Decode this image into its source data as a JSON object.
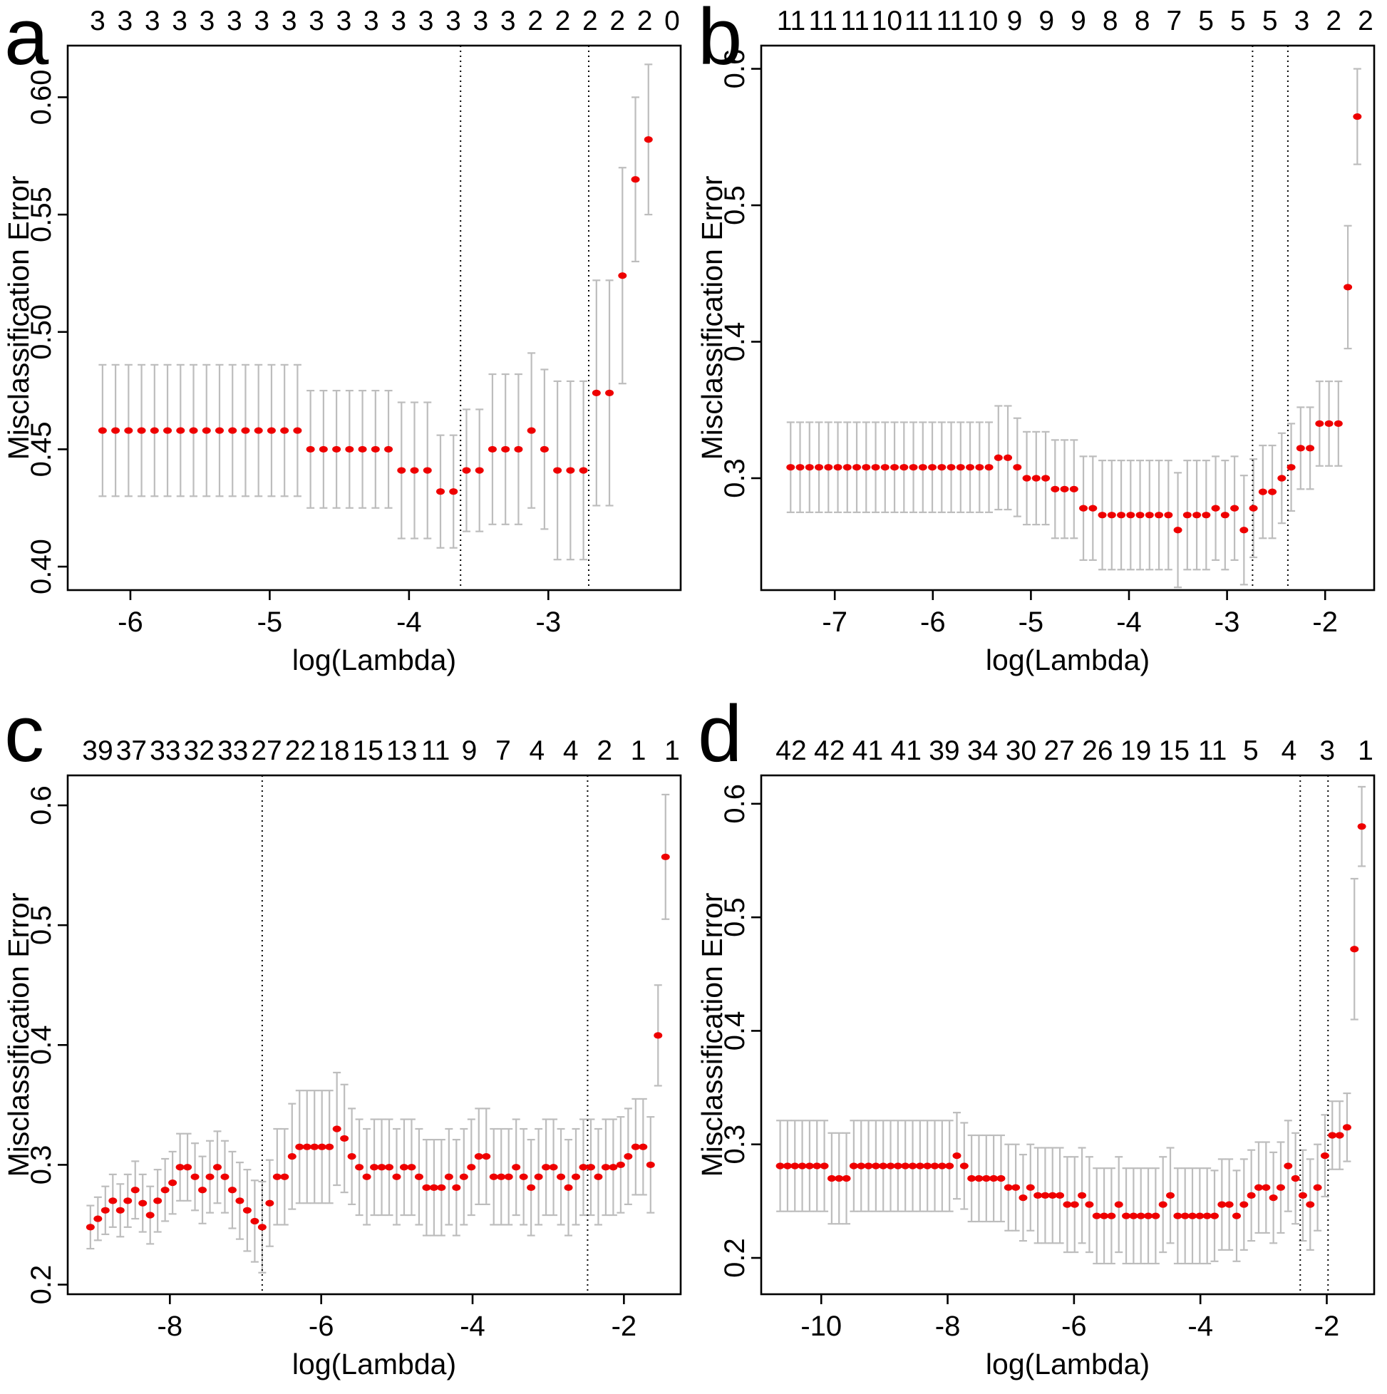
{
  "figure_labels": {
    "xlabel": "log(Lambda)",
    "ylabel": "Misclassification Error"
  },
  "colors": {
    "point": "#ee0000",
    "error_bar": "#bdbdbd",
    "axis": "#000000",
    "vline": "#000000",
    "background": "#ffffff",
    "text": "#000000"
  },
  "chart_data": [
    {
      "panel_letter": "a",
      "type": "scatter",
      "title": "",
      "xlabel": "log(Lambda)",
      "ylabel": "Misclassification Error",
      "legend": "none",
      "grid": false,
      "top_axis_counts": [
        "3",
        "3",
        "3",
        "3",
        "3",
        "3",
        "3",
        "3",
        "3",
        "3",
        "3",
        "3",
        "3",
        "3",
        "3",
        "3",
        "2",
        "2",
        "2",
        "2",
        "2",
        "0"
      ],
      "x_ticks": [
        -6,
        -5,
        -4,
        -3
      ],
      "y_tick_labels": [
        "0.40",
        "0.45",
        "0.50",
        "0.55",
        "0.60"
      ],
      "y_tick_values": [
        0.4,
        0.45,
        0.5,
        0.55,
        0.6
      ],
      "xlim": [
        -6.45,
        -2.05
      ],
      "ylim": [
        0.39,
        0.622
      ],
      "vlines": [
        -3.63,
        -2.71
      ],
      "x_start": -6.2,
      "x_step": 0.0933,
      "y": [
        0.458,
        0.458,
        0.458,
        0.458,
        0.458,
        0.458,
        0.458,
        0.458,
        0.458,
        0.458,
        0.458,
        0.458,
        0.458,
        0.458,
        0.458,
        0.458,
        0.45,
        0.45,
        0.45,
        0.45,
        0.45,
        0.45,
        0.45,
        0.441,
        0.441,
        0.441,
        0.432,
        0.432,
        0.441,
        0.441,
        0.45,
        0.45,
        0.45,
        0.458,
        0.45,
        0.441,
        0.441,
        0.441,
        0.474,
        0.474,
        0.524,
        0.565,
        0.582
      ],
      "se": [
        0.028,
        0.028,
        0.028,
        0.028,
        0.028,
        0.028,
        0.028,
        0.028,
        0.028,
        0.028,
        0.028,
        0.028,
        0.028,
        0.028,
        0.028,
        0.028,
        0.025,
        0.025,
        0.025,
        0.025,
        0.025,
        0.025,
        0.025,
        0.029,
        0.029,
        0.029,
        0.024,
        0.024,
        0.026,
        0.026,
        0.032,
        0.032,
        0.032,
        0.033,
        0.034,
        0.038,
        0.038,
        0.038,
        0.048,
        0.048,
        0.046,
        0.035,
        0.032
      ]
    },
    {
      "panel_letter": "b",
      "type": "scatter",
      "title": "",
      "xlabel": "log(Lambda)",
      "ylabel": "Misclassification Error",
      "legend": "none",
      "grid": false,
      "top_axis_counts": [
        "11",
        "11",
        "11",
        "10",
        "11",
        "11",
        "10",
        "9",
        "9",
        "9",
        "8",
        "8",
        "7",
        "5",
        "5",
        "5",
        "3",
        "2",
        "2"
      ],
      "x_ticks": [
        -7,
        -6,
        -5,
        -4,
        -3,
        -2
      ],
      "y_tick_labels": [
        "0.3",
        "0.4",
        "0.5",
        "0.6"
      ],
      "y_tick_values": [
        0.3,
        0.4,
        0.5,
        0.6
      ],
      "xlim": [
        -7.75,
        -1.5
      ],
      "ylim": [
        0.218,
        0.617
      ],
      "vlines": [
        -2.74,
        -2.38
      ],
      "x_start": -7.45,
      "x_step": 0.0963,
      "y": [
        0.308,
        0.308,
        0.308,
        0.308,
        0.308,
        0.308,
        0.308,
        0.308,
        0.308,
        0.308,
        0.308,
        0.308,
        0.308,
        0.308,
        0.308,
        0.308,
        0.308,
        0.308,
        0.308,
        0.308,
        0.308,
        0.308,
        0.315,
        0.315,
        0.308,
        0.3,
        0.3,
        0.3,
        0.292,
        0.292,
        0.292,
        0.278,
        0.278,
        0.273,
        0.273,
        0.273,
        0.273,
        0.273,
        0.273,
        0.273,
        0.273,
        0.262,
        0.273,
        0.273,
        0.273,
        0.278,
        0.273,
        0.278,
        0.262,
        0.278,
        0.29,
        0.29,
        0.3,
        0.308,
        0.322,
        0.322,
        0.34,
        0.34,
        0.34,
        0.44,
        0.565
      ],
      "se": [
        0.033,
        0.033,
        0.033,
        0.033,
        0.033,
        0.033,
        0.033,
        0.033,
        0.033,
        0.033,
        0.033,
        0.033,
        0.033,
        0.033,
        0.033,
        0.033,
        0.033,
        0.033,
        0.033,
        0.033,
        0.033,
        0.033,
        0.038,
        0.038,
        0.036,
        0.034,
        0.034,
        0.034,
        0.036,
        0.036,
        0.036,
        0.038,
        0.038,
        0.04,
        0.04,
        0.04,
        0.04,
        0.04,
        0.04,
        0.04,
        0.04,
        0.042,
        0.04,
        0.04,
        0.04,
        0.038,
        0.04,
        0.038,
        0.04,
        0.036,
        0.034,
        0.034,
        0.033,
        0.032,
        0.03,
        0.03,
        0.031,
        0.031,
        0.031,
        0.045,
        0.035
      ]
    },
    {
      "panel_letter": "c",
      "type": "scatter",
      "title": "",
      "xlabel": "log(Lambda)",
      "ylabel": "Misclassification Error",
      "legend": "none",
      "grid": false,
      "top_axis_counts": [
        "39",
        "37",
        "33",
        "32",
        "33",
        "27",
        "22",
        "18",
        "15",
        "13",
        "11",
        "9",
        "7",
        "4",
        "4",
        "2",
        "1",
        "1"
      ],
      "x_ticks": [
        -8,
        -6,
        -4,
        -2
      ],
      "y_tick_labels": [
        "0.2",
        "0.3",
        "0.4",
        "0.5",
        "0.6"
      ],
      "y_tick_values": [
        0.2,
        0.3,
        0.4,
        0.5,
        0.6
      ],
      "xlim": [
        -9.35,
        -1.25
      ],
      "ylim": [
        0.192,
        0.625
      ],
      "vlines": [
        -6.78,
        -2.48
      ],
      "x_start": -9.05,
      "x_step": 0.0987,
      "y": [
        0.248,
        0.255,
        0.262,
        0.27,
        0.262,
        0.27,
        0.279,
        0.268,
        0.258,
        0.27,
        0.279,
        0.285,
        0.298,
        0.298,
        0.29,
        0.279,
        0.29,
        0.298,
        0.29,
        0.279,
        0.27,
        0.262,
        0.253,
        0.248,
        0.268,
        0.29,
        0.29,
        0.307,
        0.315,
        0.315,
        0.315,
        0.315,
        0.315,
        0.33,
        0.322,
        0.307,
        0.298,
        0.29,
        0.298,
        0.298,
        0.298,
        0.29,
        0.298,
        0.298,
        0.29,
        0.281,
        0.281,
        0.281,
        0.29,
        0.281,
        0.29,
        0.298,
        0.307,
        0.307,
        0.29,
        0.29,
        0.29,
        0.298,
        0.29,
        0.281,
        0.29,
        0.298,
        0.298,
        0.29,
        0.281,
        0.29,
        0.298,
        0.298,
        0.29,
        0.298,
        0.298,
        0.3,
        0.307,
        0.315,
        0.315,
        0.3,
        0.408,
        0.557
      ],
      "se": [
        0.018,
        0.018,
        0.02,
        0.022,
        0.022,
        0.022,
        0.024,
        0.024,
        0.024,
        0.026,
        0.026,
        0.026,
        0.028,
        0.028,
        0.028,
        0.028,
        0.03,
        0.03,
        0.03,
        0.032,
        0.032,
        0.034,
        0.034,
        0.038,
        0.036,
        0.04,
        0.04,
        0.044,
        0.047,
        0.047,
        0.047,
        0.047,
        0.047,
        0.047,
        0.045,
        0.04,
        0.04,
        0.04,
        0.04,
        0.04,
        0.04,
        0.04,
        0.04,
        0.04,
        0.04,
        0.04,
        0.04,
        0.04,
        0.04,
        0.04,
        0.04,
        0.04,
        0.04,
        0.04,
        0.04,
        0.04,
        0.04,
        0.04,
        0.04,
        0.04,
        0.04,
        0.04,
        0.04,
        0.04,
        0.04,
        0.04,
        0.04,
        0.04,
        0.04,
        0.04,
        0.04,
        0.04,
        0.04,
        0.04,
        0.04,
        0.04,
        0.042,
        0.052
      ]
    },
    {
      "panel_letter": "d",
      "type": "scatter",
      "title": "",
      "xlabel": "log(Lambda)",
      "ylabel": "Misclassification Error",
      "legend": "none",
      "grid": false,
      "top_axis_counts": [
        "42",
        "42",
        "41",
        "41",
        "39",
        "34",
        "30",
        "27",
        "26",
        "19",
        "15",
        "11",
        "5",
        "4",
        "3",
        "1"
      ],
      "x_ticks": [
        -10,
        -8,
        -6,
        -4,
        -2
      ],
      "y_tick_labels": [
        "0.2",
        "0.3",
        "0.4",
        "0.5",
        "0.6"
      ],
      "y_tick_values": [
        0.2,
        0.3,
        0.4,
        0.5,
        0.6
      ],
      "xlim": [
        -10.95,
        -1.25
      ],
      "ylim": [
        0.168,
        0.625
      ],
      "vlines": [
        -2.42,
        -1.98
      ],
      "x_start": -10.65,
      "x_step": 0.1165,
      "y": [
        0.281,
        0.281,
        0.281,
        0.281,
        0.281,
        0.281,
        0.281,
        0.27,
        0.27,
        0.27,
        0.281,
        0.281,
        0.281,
        0.281,
        0.281,
        0.281,
        0.281,
        0.281,
        0.281,
        0.281,
        0.281,
        0.281,
        0.281,
        0.281,
        0.29,
        0.281,
        0.27,
        0.27,
        0.27,
        0.27,
        0.27,
        0.262,
        0.262,
        0.253,
        0.262,
        0.255,
        0.255,
        0.255,
        0.255,
        0.247,
        0.247,
        0.255,
        0.247,
        0.237,
        0.237,
        0.237,
        0.247,
        0.237,
        0.237,
        0.237,
        0.237,
        0.237,
        0.247,
        0.255,
        0.237,
        0.237,
        0.237,
        0.237,
        0.237,
        0.237,
        0.247,
        0.247,
        0.237,
        0.247,
        0.255,
        0.262,
        0.262,
        0.253,
        0.262,
        0.281,
        0.27,
        0.255,
        0.247,
        0.262,
        0.29,
        0.308,
        0.308,
        0.315,
        0.472,
        0.58
      ],
      "se": [
        0.04,
        0.04,
        0.04,
        0.04,
        0.04,
        0.04,
        0.04,
        0.04,
        0.04,
        0.04,
        0.04,
        0.04,
        0.04,
        0.04,
        0.04,
        0.04,
        0.04,
        0.04,
        0.04,
        0.04,
        0.04,
        0.04,
        0.04,
        0.04,
        0.038,
        0.038,
        0.038,
        0.038,
        0.038,
        0.038,
        0.038,
        0.038,
        0.038,
        0.038,
        0.038,
        0.042,
        0.042,
        0.042,
        0.042,
        0.042,
        0.042,
        0.042,
        0.042,
        0.042,
        0.042,
        0.042,
        0.042,
        0.042,
        0.042,
        0.042,
        0.042,
        0.042,
        0.042,
        0.042,
        0.042,
        0.042,
        0.042,
        0.042,
        0.042,
        0.04,
        0.04,
        0.04,
        0.04,
        0.04,
        0.04,
        0.04,
        0.04,
        0.04,
        0.04,
        0.04,
        0.04,
        0.04,
        0.04,
        0.038,
        0.036,
        0.03,
        0.03,
        0.03,
        0.062,
        0.035
      ]
    }
  ]
}
